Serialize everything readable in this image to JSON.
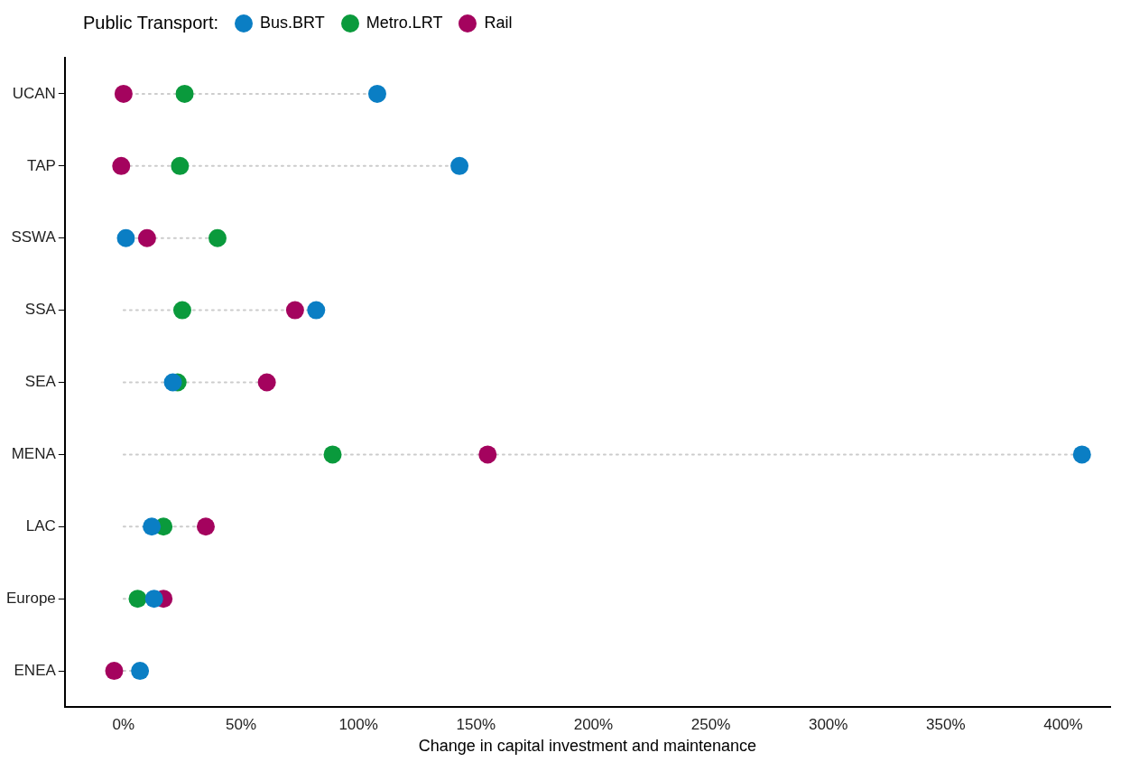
{
  "chart_data": {
    "type": "lollipop",
    "orientation": "horizontal",
    "xlabel": "Change in capital investment and maintenance",
    "legend_title": "Public Transport:",
    "legend": "top left",
    "grid": false,
    "marker": "circle",
    "line_style": "dotted",
    "categories": [
      "UCAN",
      "TAP",
      "SSWA",
      "SSA",
      "SEA",
      "MENA",
      "LAC",
      "Europe",
      "ENEA"
    ],
    "xlim": [
      -25,
      420
    ],
    "xticks": [
      {
        "value": 0,
        "label": "0%"
      },
      {
        "value": 50,
        "label": "50%"
      },
      {
        "value": 100,
        "label": "100%"
      },
      {
        "value": 150,
        "label": "150%"
      },
      {
        "value": 200,
        "label": "200%"
      },
      {
        "value": 250,
        "label": "250%"
      },
      {
        "value": 300,
        "label": "300%"
      },
      {
        "value": 350,
        "label": "350%"
      },
      {
        "value": 400,
        "label": "400%"
      }
    ],
    "series": [
      {
        "name": "Bus.BRT",
        "color": "#0a7ec4",
        "values": [
          108,
          143,
          1,
          82,
          21,
          408,
          12,
          13,
          7
        ]
      },
      {
        "name": "Metro.LRT",
        "color": "#0a9a3c",
        "values": [
          26,
          24,
          40,
          25,
          23,
          89,
          17,
          6,
          null
        ]
      },
      {
        "name": "Rail",
        "color": "#a4035e",
        "values": [
          0,
          -1,
          10,
          73,
          61,
          155,
          35,
          17,
          -4
        ]
      }
    ]
  }
}
